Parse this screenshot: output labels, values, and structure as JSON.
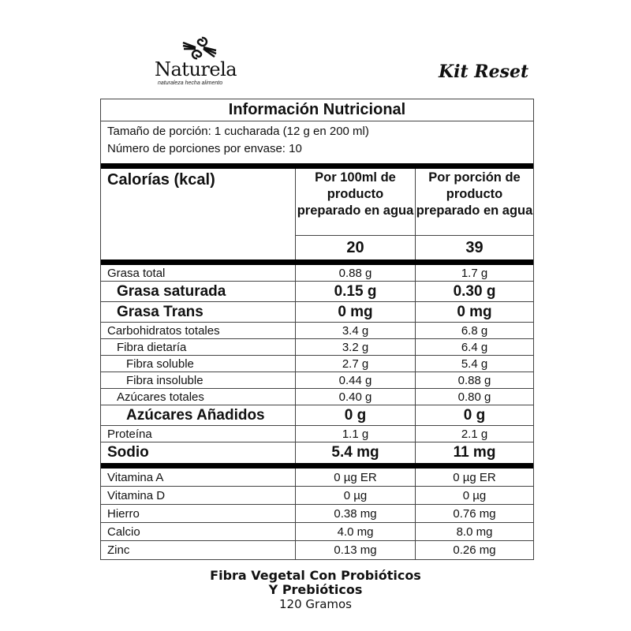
{
  "brand": {
    "name": "Naturela",
    "tagline": "naturaleza hecha alimento"
  },
  "product_line": "Kit Reset",
  "label": {
    "title": "Información Nutricional",
    "serving_size": "Tamaño de porción: 1 cucharada (12 g en 200 ml)",
    "servings_per_container": "Número de porciones por envase: 10",
    "calories_label": "Calorías (kcal)",
    "col1_header": "Por 100ml de producto preparado en agua",
    "col2_header": "Por porción de producto preparado en agua",
    "calories_col1": "20",
    "calories_col2": "39",
    "nutrients": [
      {
        "name": "Grasa total",
        "v1": "0.88 g",
        "v2": "1.7 g"
      },
      {
        "name": "Grasa saturada",
        "v1": "0.15 g",
        "v2": "0.30 g"
      },
      {
        "name": "Grasa Trans",
        "v1": "0 mg",
        "v2": "0 mg"
      },
      {
        "name": "Carbohidratos totales",
        "v1": "3.4 g",
        "v2": "6.8 g"
      },
      {
        "name": "Fibra dietaría",
        "v1": "3.2 g",
        "v2": "6.4 g"
      },
      {
        "name": "Fibra soluble",
        "v1": "2.7 g",
        "v2": "5.4 g"
      },
      {
        "name": "Fibra insoluble",
        "v1": "0.44 g",
        "v2": "0.88 g"
      },
      {
        "name": "Azúcares totales",
        "v1": "0.40 g",
        "v2": "0.80 g"
      },
      {
        "name": "Azúcares Añadidos",
        "v1": "0 g",
        "v2": "0 g"
      },
      {
        "name": "Proteína",
        "v1": "1.1 g",
        "v2": "2.1 g"
      },
      {
        "name": "Sodio",
        "v1": "5.4 mg",
        "v2": "11 mg"
      }
    ],
    "micronutrients": [
      {
        "name": "Vitamina A",
        "v1": "0 µg ER",
        "v2": "0 µg ER"
      },
      {
        "name": "Vitamina D",
        "v1": "0 µg",
        "v2": "0 µg"
      },
      {
        "name": "Hierro",
        "v1": "0.38 mg",
        "v2": "0.76 mg"
      },
      {
        "name": "Calcio",
        "v1": "4.0 mg",
        "v2": "8.0 mg"
      },
      {
        "name": "Zinc",
        "v1": "0.13 mg",
        "v2": "0.26 mg"
      }
    ]
  },
  "footer": {
    "line1": "Fibra Vegetal Con Probióticos",
    "line2": "Y Prebióticos",
    "weight": "120 Gramos"
  }
}
